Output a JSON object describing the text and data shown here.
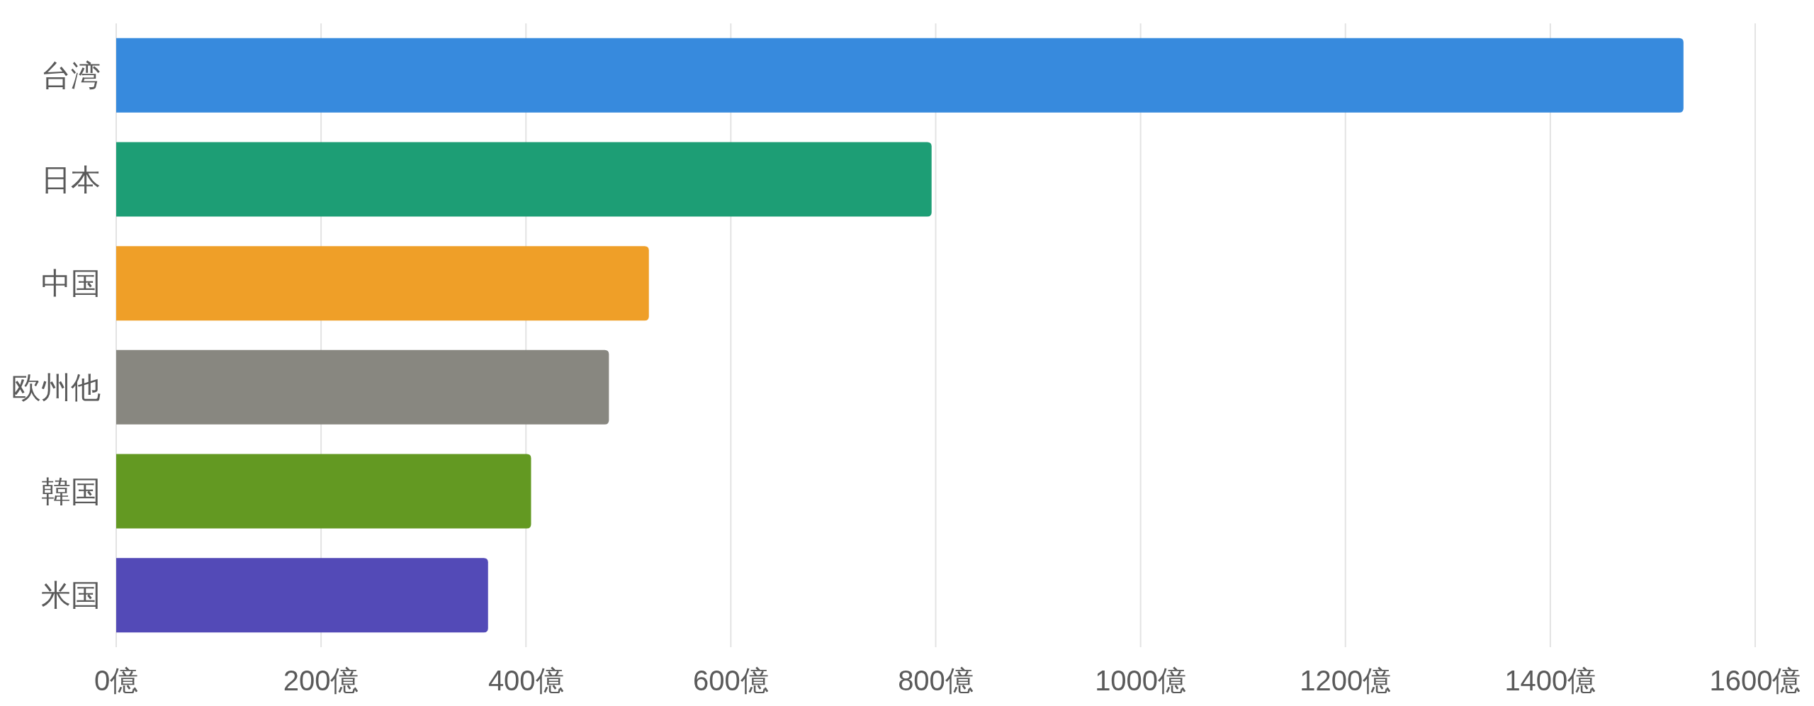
{
  "chart_data": {
    "type": "bar",
    "orientation": "horizontal",
    "categories": [
      "台湾",
      "日本",
      "中国",
      "欧州他",
      "韓国",
      "米国"
    ],
    "values": [
      1530,
      796,
      520,
      481,
      405,
      363
    ],
    "colors": [
      "#378add",
      "#1d9e75",
      "#ef9f28",
      "#888780",
      "#639922",
      "#534ab7"
    ],
    "xlim": [
      0,
      1600
    ],
    "xticks": [
      {
        "value": 0,
        "label": "0億"
      },
      {
        "value": 200,
        "label": "200億"
      },
      {
        "value": 400,
        "label": "400億"
      },
      {
        "value": 600,
        "label": "600億"
      },
      {
        "value": 800,
        "label": "800億"
      },
      {
        "value": 1000,
        "label": "1000億"
      },
      {
        "value": 1200,
        "label": "1200億"
      },
      {
        "value": 1400,
        "label": "1400億"
      },
      {
        "value": 1600,
        "label": "1600億"
      }
    ],
    "grid": "x"
  }
}
